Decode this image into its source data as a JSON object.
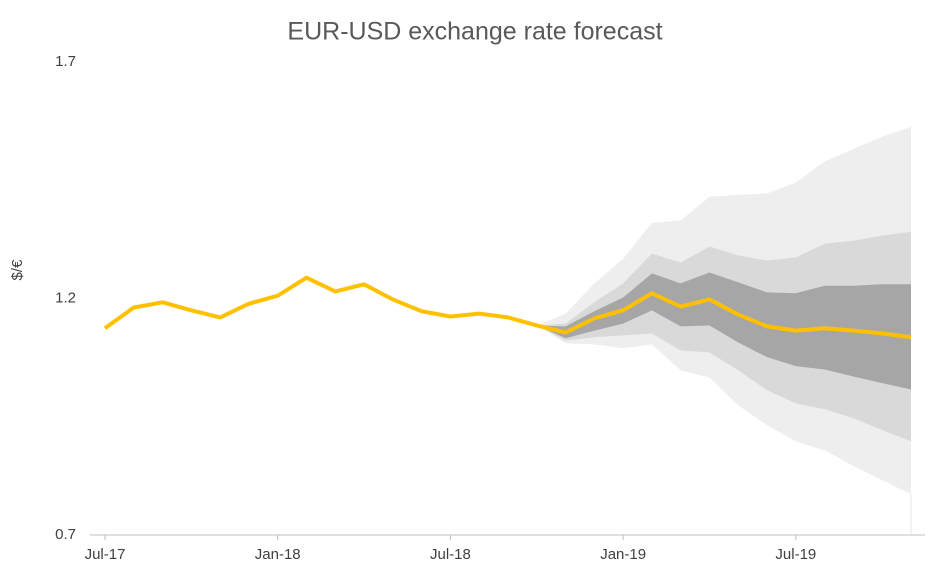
{
  "chart_data": {
    "type": "fan",
    "title": "EUR-USD exchange rate forecast",
    "y_label": "$/€",
    "categories": [
      "Jul-17",
      null,
      null,
      null,
      null,
      null,
      "Jan-18",
      null,
      null,
      null,
      null,
      null,
      "Jul-18",
      null,
      null,
      null,
      null,
      null,
      "Jan-19",
      null,
      null,
      null,
      null,
      null,
      "Jul-19",
      null,
      null,
      null,
      null
    ],
    "series": [
      {
        "color": "#ffc000",
        "values": [
          1.137,
          1.181,
          1.192,
          1.175,
          1.16,
          1.189,
          1.206,
          1.244,
          1.215,
          1.23,
          1.198,
          1.173,
          1.162,
          1.168,
          1.16,
          1.143,
          1.128,
          1.158,
          1.175,
          1.211,
          1.183,
          1.198,
          1.166,
          1.141,
          1.132,
          1.137,
          1.132,
          1.126,
          1.118
        ]
      }
    ],
    "bands": [
      {
        "color": "#eeeeee",
        "upper": [
          null,
          null,
          null,
          null,
          null,
          null,
          null,
          null,
          null,
          null,
          null,
          null,
          null,
          null,
          null,
          1.143,
          1.168,
          1.232,
          1.284,
          1.36,
          1.365,
          1.415,
          1.419,
          1.422,
          1.445,
          1.49,
          1.516,
          1.542,
          1.563
        ],
        "lower": [
          null,
          null,
          null,
          null,
          null,
          null,
          null,
          null,
          null,
          null,
          null,
          null,
          null,
          null,
          null,
          1.143,
          1.105,
          1.103,
          1.095,
          1.103,
          1.048,
          1.033,
          0.974,
          0.932,
          0.898,
          0.879,
          0.846,
          0.816,
          0.786
        ]
      },
      {
        "color": "#d9d9d9",
        "upper": [
          null,
          null,
          null,
          null,
          null,
          null,
          null,
          null,
          null,
          null,
          null,
          null,
          null,
          null,
          null,
          1.143,
          1.147,
          1.192,
          1.232,
          1.295,
          1.276,
          1.31,
          1.291,
          1.28,
          1.287,
          1.316,
          1.322,
          1.333,
          1.341
        ],
        "lower": [
          null,
          null,
          null,
          null,
          null,
          null,
          null,
          null,
          null,
          null,
          null,
          null,
          null,
          null,
          null,
          1.143,
          1.111,
          1.118,
          1.122,
          1.126,
          1.09,
          1.086,
          1.048,
          1.006,
          0.978,
          0.966,
          0.947,
          0.922,
          0.898
        ]
      },
      {
        "color": "#a6a6a6",
        "upper": [
          null,
          null,
          null,
          null,
          null,
          null,
          null,
          null,
          null,
          null,
          null,
          null,
          null,
          null,
          null,
          1.143,
          1.141,
          1.173,
          1.202,
          1.253,
          1.232,
          1.255,
          1.234,
          1.213,
          1.211,
          1.227,
          1.227,
          1.23,
          1.23
        ],
        "lower": [
          null,
          null,
          null,
          null,
          null,
          null,
          null,
          null,
          null,
          null,
          null,
          null,
          null,
          null,
          null,
          1.143,
          1.116,
          1.132,
          1.147,
          1.175,
          1.141,
          1.143,
          1.107,
          1.076,
          1.057,
          1.05,
          1.035,
          1.021,
          1.008
        ]
      }
    ],
    "ylim": [
      0.7,
      1.7
    ],
    "yticks": [
      0.7,
      1.2,
      1.7
    ]
  }
}
